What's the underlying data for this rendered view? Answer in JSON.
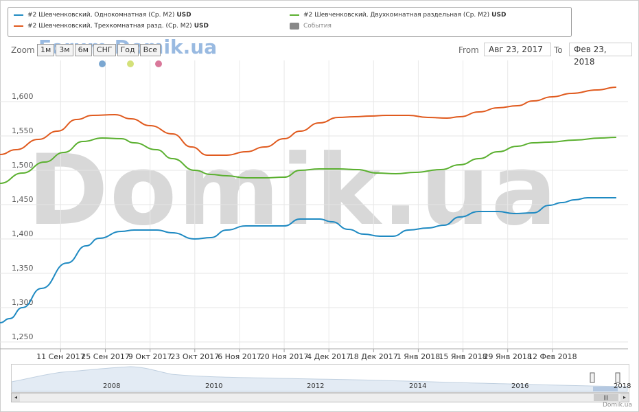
{
  "legend": [
    {
      "name": "#2 Шевченковский, Однокомнатная (Ср. М2)",
      "unit": "USD",
      "color": "#1f8ac2"
    },
    {
      "name": "#2 Шевченковский, Двухкомнатная раздельная (Ср. М2)",
      "unit": "USD",
      "color": "#5bb030"
    },
    {
      "name": "#2 Шевченковский, Трехкомнатная разд. (Ср. М2)",
      "unit": "USD",
      "color": "#e05a1e"
    },
    {
      "name": "События",
      "unit": "",
      "color": "#888888"
    }
  ],
  "zoom": {
    "label": "Zoom",
    "buttons": [
      "1м",
      "3м",
      "6м",
      "СНГ",
      "Год",
      "Все"
    ]
  },
  "range": {
    "from_label": "From",
    "from_value": "Авг 23, 2017",
    "to_label": "To",
    "to_value": "Фев 23, 2018"
  },
  "event_dots": [
    "#7ba7d1",
    "#d4e17a",
    "#d9789a"
  ],
  "watermark": "Domik.ua",
  "forum_watermark": "Forum.Domik.ua",
  "credit": "Domik.ua",
  "navigator": {
    "years": [
      "2008",
      "2010",
      "2012",
      "2014",
      "2016",
      "2018"
    ]
  },
  "chart_data": {
    "type": "line",
    "x_ticks": [
      "11 Сен 2017",
      "25 Сен 2017",
      "9 Окт 2017",
      "23 Окт 2017",
      "6 Ноя 2017",
      "20 Ноя 2017",
      "4 Дек 2017",
      "18 Дек 2017",
      "1 Янв 2018",
      "15 Янв 2018",
      "29 Янв 2018",
      "12 Фев 2018"
    ],
    "x_range": [
      "2017-08-23",
      "2018-02-23"
    ],
    "y_ticks": [
      "1,250",
      "1,300",
      "1,350",
      "1,400",
      "1,450",
      "1,500",
      "1,550",
      "1,600"
    ],
    "ylim": [
      1240,
      1660
    ],
    "grid": true,
    "legend_position": "top",
    "series": [
      {
        "name": "#2 Шевченковский, Однокомнатная (Ср. М2)",
        "color": "#1f8ac2",
        "points": [
          [
            "2017-08-23",
            1278
          ],
          [
            "2017-08-26",
            1284
          ],
          [
            "2017-08-30",
            1300
          ],
          [
            "2017-09-05",
            1328
          ],
          [
            "2017-09-13",
            1365
          ],
          [
            "2017-09-19",
            1390
          ],
          [
            "2017-09-23",
            1401
          ],
          [
            "2017-09-30",
            1411
          ],
          [
            "2017-10-04",
            1413
          ],
          [
            "2017-10-11",
            1413
          ],
          [
            "2017-10-16",
            1409
          ],
          [
            "2017-10-23",
            1400
          ],
          [
            "2017-10-28",
            1402
          ],
          [
            "2017-11-02",
            1413
          ],
          [
            "2017-11-08",
            1419
          ],
          [
            "2017-11-14",
            1419
          ],
          [
            "2017-11-20",
            1419
          ],
          [
            "2017-11-25",
            1429
          ],
          [
            "2017-12-01",
            1429
          ],
          [
            "2017-12-05",
            1425
          ],
          [
            "2017-12-10",
            1414
          ],
          [
            "2017-12-15",
            1407
          ],
          [
            "2017-12-20",
            1404
          ],
          [
            "2017-12-24",
            1404
          ],
          [
            "2017-12-29",
            1413
          ],
          [
            "2018-01-04",
            1416
          ],
          [
            "2018-01-09",
            1420
          ],
          [
            "2018-01-14",
            1432
          ],
          [
            "2018-01-20",
            1440
          ],
          [
            "2018-01-26",
            1440
          ],
          [
            "2018-01-31",
            1437
          ],
          [
            "2018-02-06",
            1438
          ],
          [
            "2018-02-11",
            1449
          ],
          [
            "2018-02-15",
            1453
          ],
          [
            "2018-02-19",
            1457
          ],
          [
            "2018-02-23",
            1460
          ],
          [
            "2018-03-04",
            1460
          ]
        ]
      },
      {
        "name": "#2 Шевченковский, Двухкомнатная раздельная (Ср. М2)",
        "color": "#5bb030",
        "points": [
          [
            "2017-08-23",
            1481
          ],
          [
            "2017-08-30",
            1496
          ],
          [
            "2017-09-06",
            1512
          ],
          [
            "2017-09-12",
            1526
          ],
          [
            "2017-09-18",
            1542
          ],
          [
            "2017-09-24",
            1547
          ],
          [
            "2017-09-30",
            1546
          ],
          [
            "2017-10-04",
            1540
          ],
          [
            "2017-10-11",
            1530
          ],
          [
            "2017-10-16",
            1517
          ],
          [
            "2017-10-23",
            1500
          ],
          [
            "2017-10-28",
            1494
          ],
          [
            "2017-11-02",
            1492
          ],
          [
            "2017-11-08",
            1489
          ],
          [
            "2017-11-14",
            1489
          ],
          [
            "2017-11-20",
            1490
          ],
          [
            "2017-11-25",
            1500
          ],
          [
            "2017-12-01",
            1502
          ],
          [
            "2017-12-07",
            1502
          ],
          [
            "2017-12-13",
            1501
          ],
          [
            "2017-12-19",
            1496
          ],
          [
            "2017-12-25",
            1495
          ],
          [
            "2017-12-31",
            1497
          ],
          [
            "2018-01-08",
            1501
          ],
          [
            "2018-01-14",
            1508
          ],
          [
            "2018-01-20",
            1517
          ],
          [
            "2018-01-26",
            1527
          ],
          [
            "2018-02-01",
            1535
          ],
          [
            "2018-02-06",
            1540
          ],
          [
            "2018-02-11",
            1541
          ],
          [
            "2018-02-19",
            1544
          ],
          [
            "2018-02-27",
            1547
          ],
          [
            "2018-03-04",
            1548
          ]
        ]
      },
      {
        "name": "#2 Шевченковский, Трехкомнатная разд. (Ср. М2)",
        "color": "#e05a1e",
        "points": [
          [
            "2017-08-23",
            1523
          ],
          [
            "2017-08-28",
            1530
          ],
          [
            "2017-09-04",
            1545
          ],
          [
            "2017-09-10",
            1557
          ],
          [
            "2017-09-16",
            1574
          ],
          [
            "2017-09-21",
            1580
          ],
          [
            "2017-09-28",
            1581
          ],
          [
            "2017-10-03",
            1575
          ],
          [
            "2017-10-09",
            1565
          ],
          [
            "2017-10-16",
            1553
          ],
          [
            "2017-10-22",
            1534
          ],
          [
            "2017-10-27",
            1522
          ],
          [
            "2017-11-02",
            1522
          ],
          [
            "2017-11-08",
            1527
          ],
          [
            "2017-11-14",
            1534
          ],
          [
            "2017-11-20",
            1546
          ],
          [
            "2017-11-25",
            1557
          ],
          [
            "2017-12-01",
            1569
          ],
          [
            "2017-12-07",
            1577
          ],
          [
            "2017-12-12",
            1578
          ],
          [
            "2017-12-17",
            1579
          ],
          [
            "2017-12-22",
            1580
          ],
          [
            "2017-12-29",
            1580
          ],
          [
            "2018-01-04",
            1577
          ],
          [
            "2018-01-10",
            1576
          ],
          [
            "2018-01-14",
            1578
          ],
          [
            "2018-01-20",
            1585
          ],
          [
            "2018-01-26",
            1591
          ],
          [
            "2018-02-01",
            1594
          ],
          [
            "2018-02-06",
            1601
          ],
          [
            "2018-02-12",
            1607
          ],
          [
            "2018-02-18",
            1612
          ],
          [
            "2018-02-26",
            1617
          ],
          [
            "2018-03-04",
            1621
          ]
        ]
      }
    ]
  }
}
